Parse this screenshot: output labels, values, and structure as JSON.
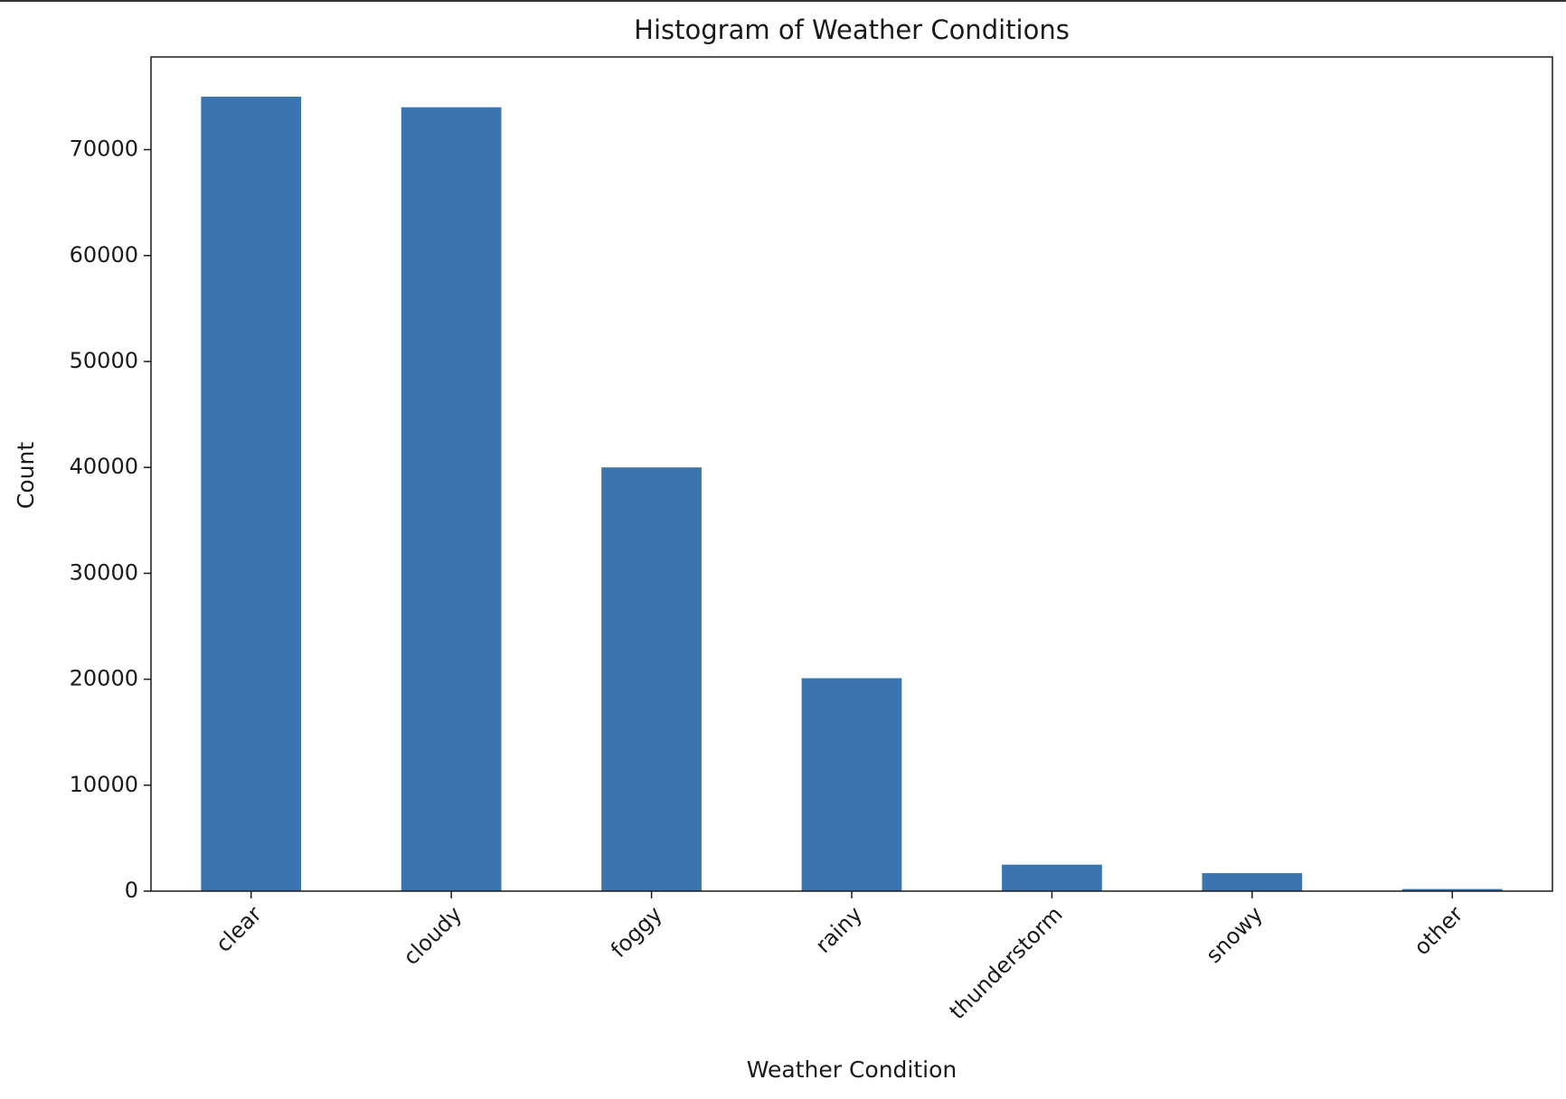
{
  "chart_data": {
    "type": "bar",
    "title": "Histogram of Weather Conditions",
    "x_label": "Weather Condition",
    "y_label": "Count",
    "categories": [
      "clear",
      "cloudy",
      "foggy",
      "rainy",
      "thunderstorm",
      "snowy",
      "other"
    ],
    "values": [
      75000,
      74000,
      40000,
      20100,
      2500,
      1700,
      200
    ],
    "color": "#3b75af",
    "ylim": [
      0,
      78750
    ],
    "yticks": [
      0,
      10000,
      20000,
      30000,
      40000,
      50000,
      60000,
      70000
    ],
    "grid": false
  }
}
